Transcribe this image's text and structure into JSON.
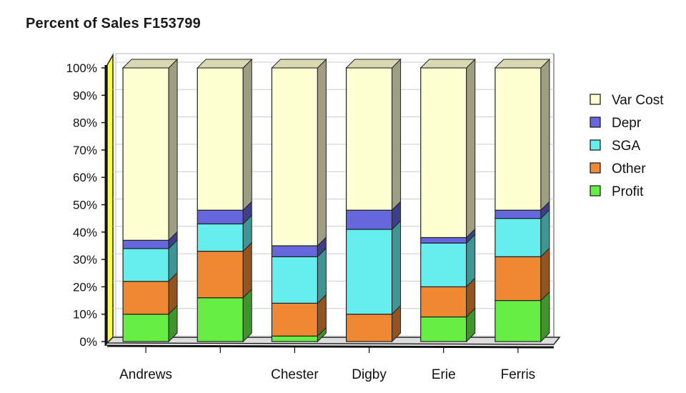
{
  "chart_data": {
    "type": "bar",
    "stacked": true,
    "percent": true,
    "three_d": true,
    "title": "Percent of Sales  F153799",
    "xlabel": "",
    "ylabel": "",
    "ylim": [
      0,
      100
    ],
    "y_ticks": [
      "0%",
      "10%",
      "20%",
      "30%",
      "40%",
      "50%",
      "60%",
      "70%",
      "80%",
      "90%",
      "100%"
    ],
    "grid": true,
    "legend_position": "right",
    "categories": [
      "Andrews",
      "",
      "Chester",
      "Digby",
      "Erie",
      "Ferris"
    ],
    "series": [
      {
        "name": "Profit",
        "color": "#66ee44",
        "values": [
          10,
          16,
          2,
          0,
          9,
          15
        ]
      },
      {
        "name": "Other",
        "color": "#ee8833",
        "values": [
          12,
          17,
          12,
          10,
          11,
          16
        ]
      },
      {
        "name": "SGA",
        "color": "#66eeee",
        "values": [
          12,
          10,
          17,
          31,
          16,
          14
        ]
      },
      {
        "name": "Depr",
        "color": "#6666dd",
        "values": [
          3,
          5,
          4,
          7,
          2,
          3
        ]
      },
      {
        "name": "Var Cost",
        "color": "#ffffd4",
        "values": [
          63,
          52,
          65,
          52,
          62,
          52
        ]
      }
    ],
    "legend_order": [
      "Var Cost",
      "Depr",
      "SGA",
      "Other",
      "Profit"
    ]
  }
}
